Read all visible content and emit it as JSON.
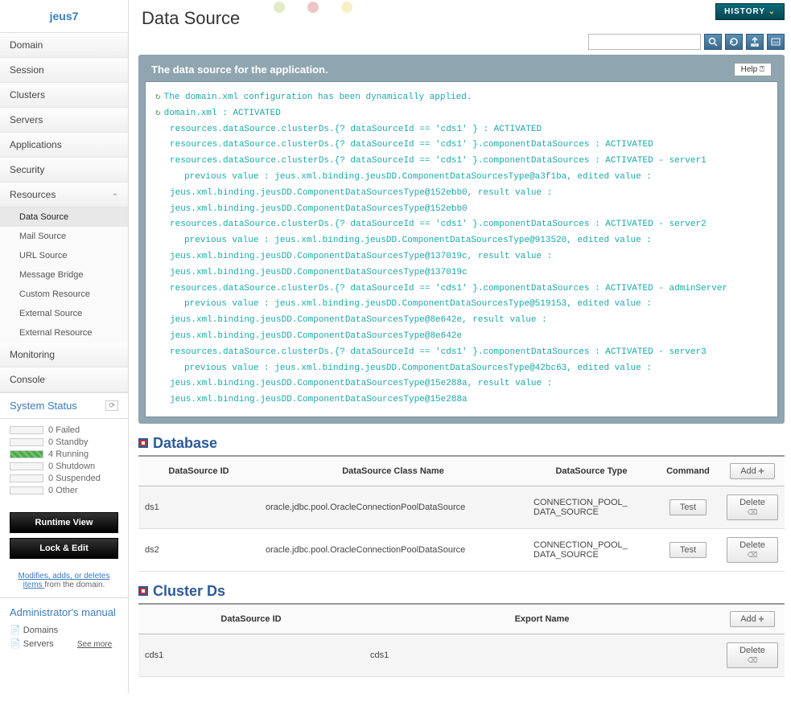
{
  "brand": "jeus7",
  "nav": {
    "domain": "Domain",
    "session": "Session",
    "clusters": "Clusters",
    "servers": "Servers",
    "applications": "Applications",
    "security": "Security",
    "resources": "Resources",
    "monitoring": "Monitoring",
    "console": "Console"
  },
  "resources_sub": {
    "data_source": "Data Source",
    "mail_source": "Mail Source",
    "url_source": "URL Source",
    "message_bridge": "Message Bridge",
    "custom_resource": "Custom Resource",
    "external_source": "External Source",
    "external_resource": "External Resource"
  },
  "system_status": {
    "title": "System Status",
    "failed": {
      "count": "0",
      "label": "Failed"
    },
    "standby": {
      "count": "0",
      "label": "Standby"
    },
    "running": {
      "count": "4",
      "label": "Running"
    },
    "shutdown": {
      "count": "0",
      "label": "Shutdown"
    },
    "suspended": {
      "count": "0",
      "label": "Suspended"
    },
    "other": {
      "count": "0",
      "label": "Other"
    }
  },
  "actions": {
    "runtime_view": "Runtime View",
    "lock_edit": "Lock & Edit",
    "modifies_link": "Modifies, adds, or deletes items ",
    "modifies_tail": "from the domain."
  },
  "admin_manual": {
    "title": "Administrator's manual",
    "domains": "Domains",
    "servers": "Servers",
    "see_more": "See more"
  },
  "header": {
    "history": "HISTORY",
    "page_title": "Data Source",
    "search_placeholder": ""
  },
  "message_panel": {
    "title": "The data source for the application.",
    "help": "Help ⍰",
    "lines": [
      {
        "icon": true,
        "indent": 0,
        "text": "The domain.xml configuration has been dynamically applied."
      },
      {
        "icon": true,
        "indent": 0,
        "text": "domain.xml : ACTIVATED"
      },
      {
        "indent": 1,
        "text": "resources.dataSource.clusterDs.{? dataSourceId == 'cds1' } : ACTIVATED"
      },
      {
        "indent": 1,
        "text": "resources.dataSource.clusterDs.{? dataSourceId == 'cds1' }.componentDataSources : ACTIVATED"
      },
      {
        "indent": 1,
        "text": "resources.dataSource.clusterDs.{? dataSourceId == 'cds1' }.componentDataSources : ACTIVATED - server1"
      },
      {
        "indent": 2,
        "text": "previous value : jeus.xml.binding.jeusDD.ComponentDataSourcesType@a3f1ba, edited value :"
      },
      {
        "indent": 1,
        "text": "jeus.xml.binding.jeusDD.ComponentDataSourcesType@152ebb0, result value :"
      },
      {
        "indent": 1,
        "text": "jeus.xml.binding.jeusDD.ComponentDataSourcesType@152ebb0"
      },
      {
        "indent": 1,
        "text": "resources.dataSource.clusterDs.{? dataSourceId == 'cds1' }.componentDataSources : ACTIVATED - server2"
      },
      {
        "indent": 2,
        "text": "previous value : jeus.xml.binding.jeusDD.ComponentDataSourcesType@913520, edited value :"
      },
      {
        "indent": 1,
        "text": "jeus.xml.binding.jeusDD.ComponentDataSourcesType@137019c, result value :"
      },
      {
        "indent": 1,
        "text": "jeus.xml.binding.jeusDD.ComponentDataSourcesType@137019c"
      },
      {
        "indent": 1,
        "text": "resources.dataSource.clusterDs.{? dataSourceId == 'cds1' }.componentDataSources : ACTIVATED - adminServer"
      },
      {
        "indent": 2,
        "text": "previous value : jeus.xml.binding.jeusDD.ComponentDataSourcesType@519153, edited value :"
      },
      {
        "indent": 1,
        "text": "jeus.xml.binding.jeusDD.ComponentDataSourcesType@8e642e, result value :"
      },
      {
        "indent": 1,
        "text": "jeus.xml.binding.jeusDD.ComponentDataSourcesType@8e642e"
      },
      {
        "indent": 1,
        "text": "resources.dataSource.clusterDs.{? dataSourceId == 'cds1' }.componentDataSources : ACTIVATED - server3"
      },
      {
        "indent": 2,
        "text": "previous value : jeus.xml.binding.jeusDD.ComponentDataSourcesType@42bc63, edited value :"
      },
      {
        "indent": 1,
        "text": "jeus.xml.binding.jeusDD.ComponentDataSourcesType@15e288a, result value :"
      },
      {
        "indent": 1,
        "text": "jeus.xml.binding.jeusDD.ComponentDataSourcesType@15e288a"
      }
    ]
  },
  "database": {
    "title": "Database",
    "columns": {
      "id": "DataSource ID",
      "class": "DataSource Class Name",
      "type": "DataSource Type",
      "cmd": "Command"
    },
    "add": "Add",
    "test": "Test",
    "delete": "Delete",
    "rows": [
      {
        "id": "ds1",
        "class": "oracle.jdbc.pool.OracleConnectionPoolDataSource",
        "type": "CONNECTION_POOL_DATA_SOURCE"
      },
      {
        "id": "ds2",
        "class": "oracle.jdbc.pool.OracleConnectionPoolDataSource",
        "type": "CONNECTION_POOL_DATA_SOURCE"
      }
    ]
  },
  "cluster_ds": {
    "title": "Cluster Ds",
    "columns": {
      "id": "DataSource ID",
      "export": "Export Name"
    },
    "add": "Add",
    "delete": "Delete",
    "rows": [
      {
        "id": "cds1",
        "export": "cds1"
      }
    ]
  },
  "colors": {
    "deco1": "#b0d070",
    "deco2": "#d07070",
    "deco3": "#f0d870"
  }
}
